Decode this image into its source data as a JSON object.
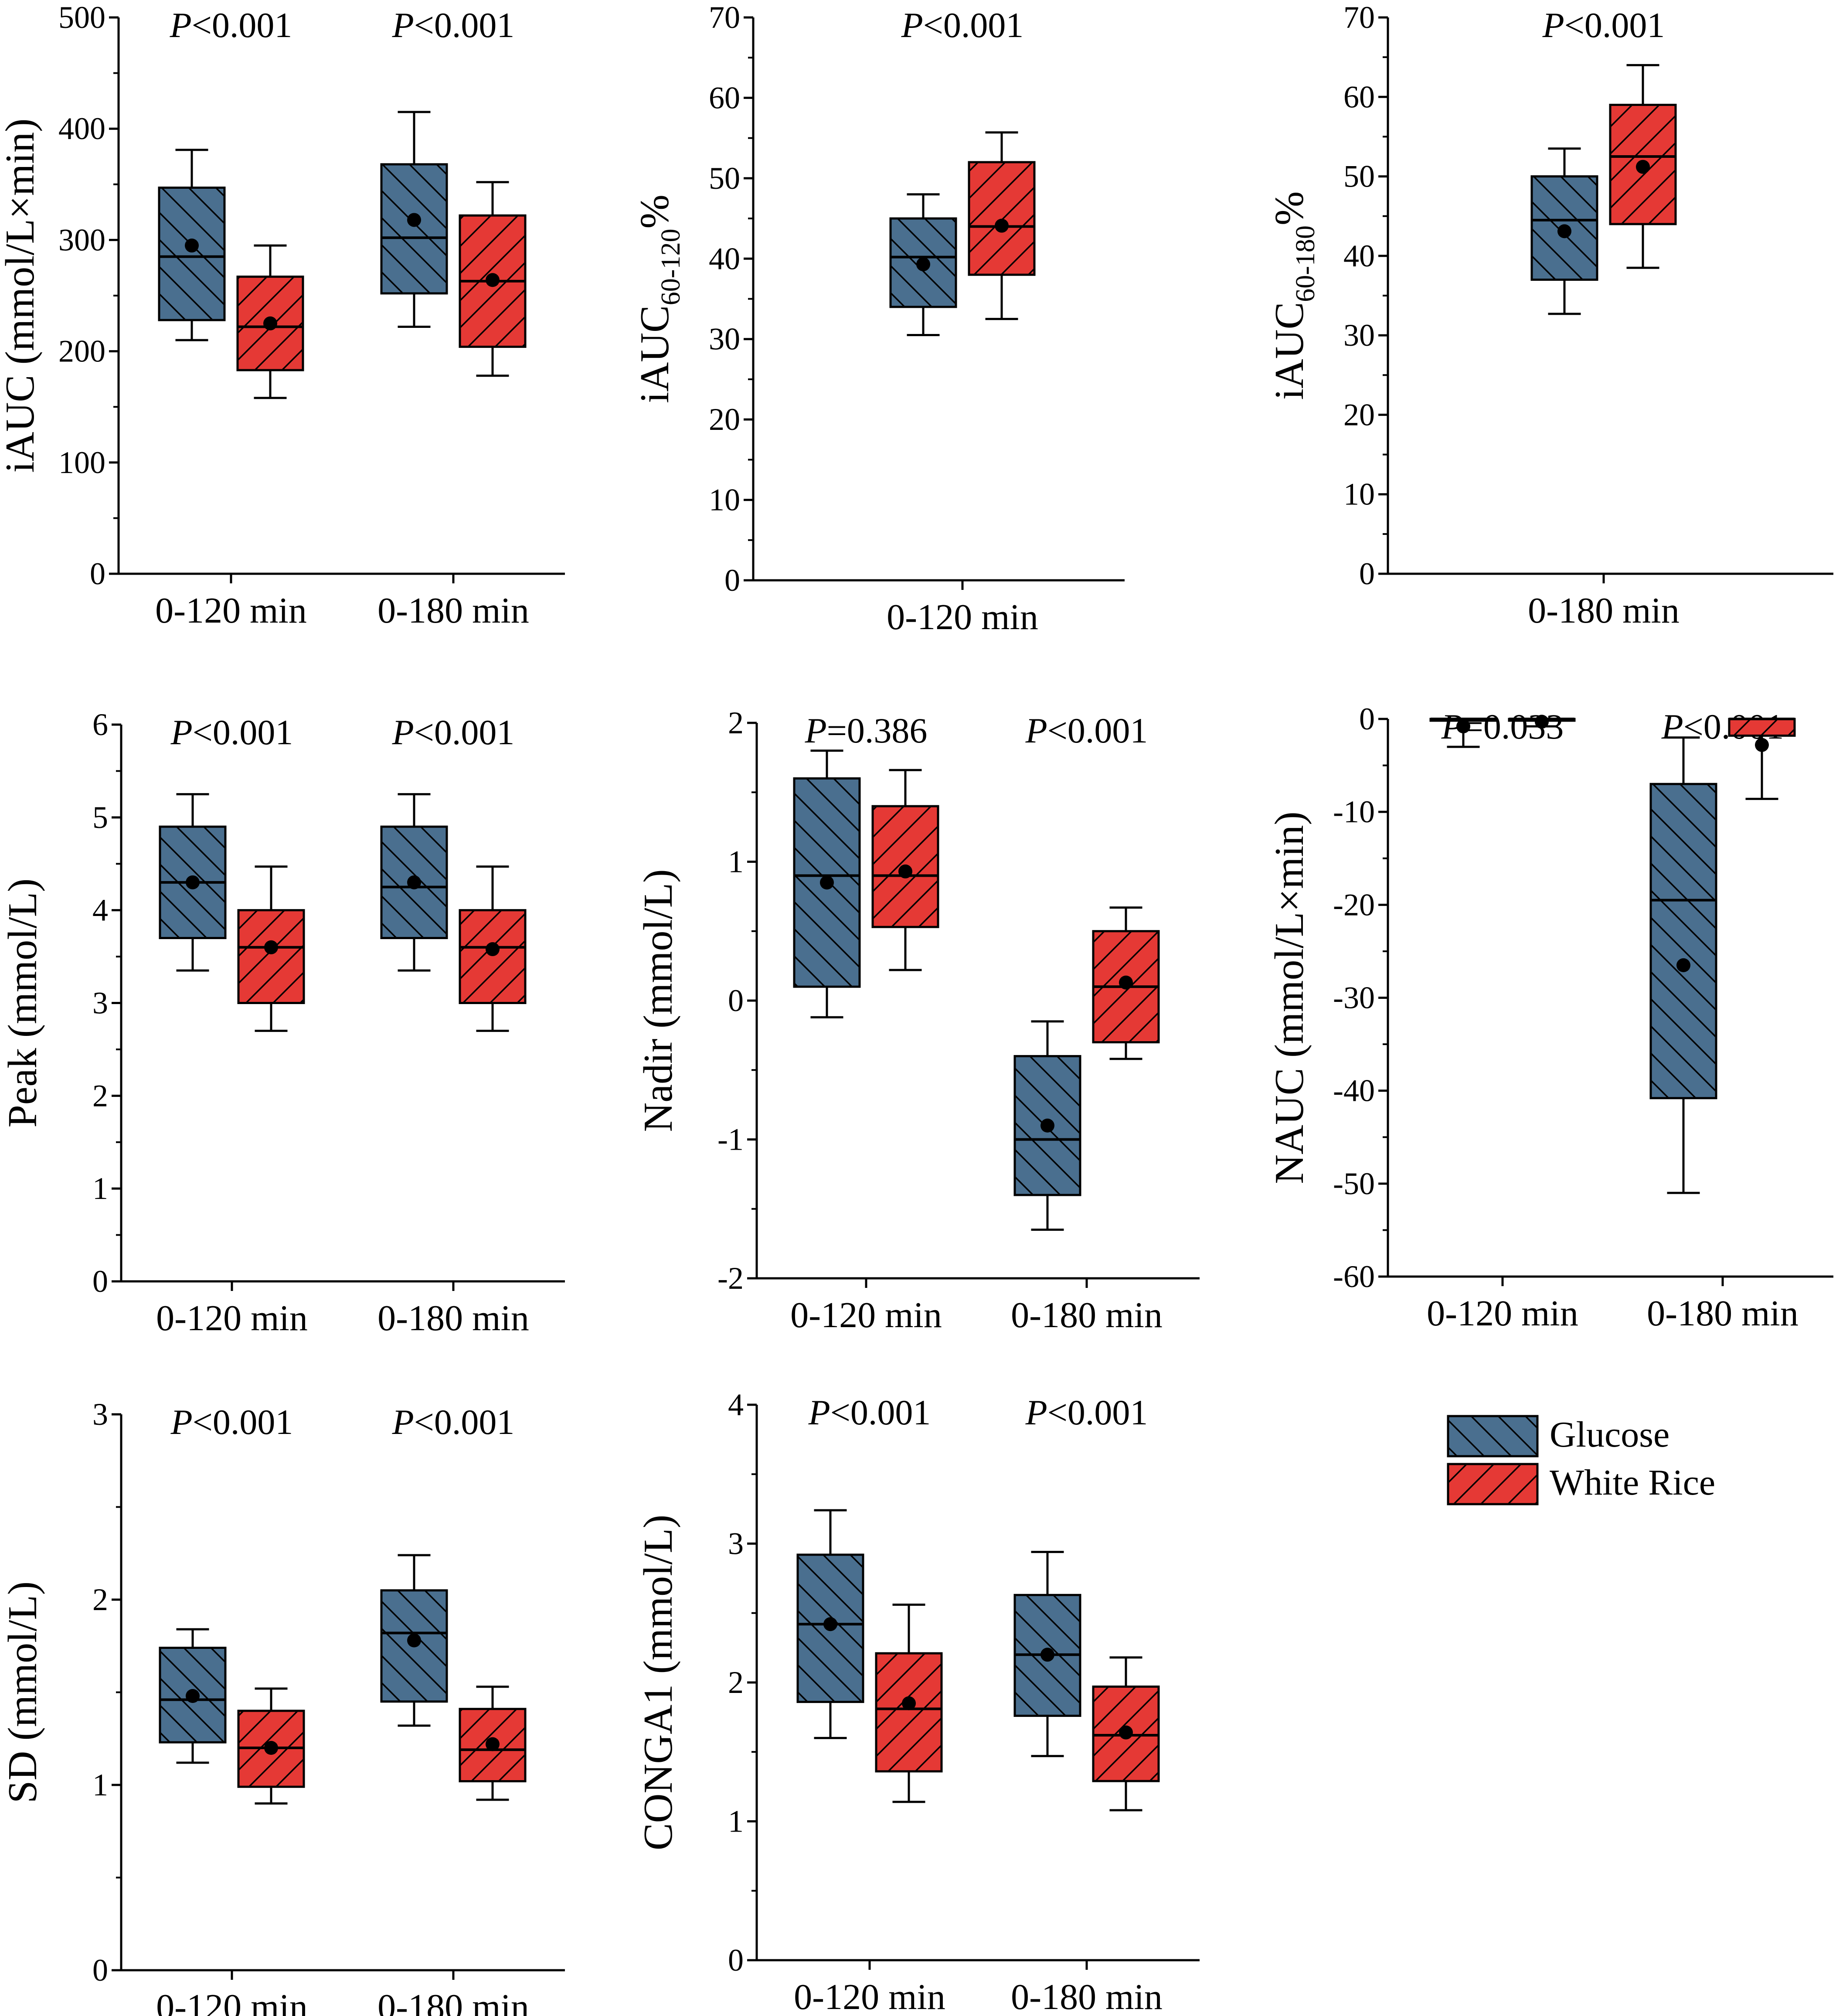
{
  "colors": {
    "glucose": "#4a6f8f",
    "white_rice": "#e53935",
    "axis": "#000000"
  },
  "legend": {
    "items": [
      {
        "label": "Glucose",
        "color": "#4a6f8f"
      },
      {
        "label": "White Rice",
        "color": "#e53935"
      }
    ]
  },
  "chart_data": [
    {
      "id": "iauc",
      "type": "box",
      "ylabel": "iAUC (mmol/L×min)",
      "ylim": [
        0,
        500
      ],
      "yticks": [
        0,
        100,
        200,
        300,
        400,
        500
      ],
      "groups": [
        {
          "label": "0-120 min",
          "p_text": "<0.001",
          "glucose": {
            "min": 210,
            "q1": 228,
            "median": 285,
            "q3": 347,
            "max": 381,
            "mean": 295
          },
          "white_rice": {
            "min": 158,
            "q1": 183,
            "median": 222,
            "q3": 267,
            "max": 295,
            "mean": 225
          }
        },
        {
          "label": "0-180 min",
          "p_text": "<0.001",
          "glucose": {
            "min": 222,
            "q1": 252,
            "median": 302,
            "q3": 368,
            "max": 415,
            "mean": 318
          },
          "white_rice": {
            "min": 178,
            "q1": 204,
            "median": 263,
            "q3": 322,
            "max": 352,
            "mean": 264
          }
        }
      ]
    },
    {
      "id": "iauc60120",
      "type": "box",
      "ylabel_main": "iAUC",
      "ylabel_sub": "60-120",
      "ylabel_suffix": "%",
      "ylim": [
        0,
        70
      ],
      "yticks": [
        0,
        10,
        20,
        30,
        40,
        50,
        60,
        70
      ],
      "p_text": "<0.001",
      "groups": [
        {
          "label": "0-120 min",
          "glucose": {
            "min": 30.5,
            "q1": 34,
            "median": 40.2,
            "q3": 45,
            "max": 48,
            "mean": 39.3
          },
          "white_rice": {
            "min": 32.5,
            "q1": 38,
            "median": 44,
            "q3": 52,
            "max": 55.7,
            "mean": 44.1
          }
        }
      ]
    },
    {
      "id": "iauc60180",
      "type": "box",
      "ylabel_main": "iAUC",
      "ylabel_sub": "60-180",
      "ylabel_suffix": "%",
      "ylim": [
        0,
        70
      ],
      "yticks": [
        0,
        10,
        20,
        30,
        40,
        50,
        60,
        70
      ],
      "p_text": "<0.001",
      "groups": [
        {
          "label": "0-180 min",
          "glucose": {
            "min": 32.7,
            "q1": 37,
            "median": 44.5,
            "q3": 50,
            "max": 53.5,
            "mean": 43.1
          },
          "white_rice": {
            "min": 38.5,
            "q1": 44,
            "median": 52.5,
            "q3": 59,
            "max": 64,
            "mean": 51.2
          }
        }
      ]
    },
    {
      "id": "peak",
      "type": "box",
      "ylabel": "Peak (mmol/L)",
      "ylim": [
        0,
        6
      ],
      "yticks": [
        0,
        1,
        2,
        3,
        4,
        5,
        6
      ],
      "groups": [
        {
          "label": "0-120 min",
          "p_text": "<0.001",
          "glucose": {
            "min": 3.35,
            "q1": 3.7,
            "median": 4.3,
            "q3": 4.9,
            "max": 5.25,
            "mean": 4.3
          },
          "white_rice": {
            "min": 2.7,
            "q1": 3.0,
            "median": 3.6,
            "q3": 4.0,
            "max": 4.47,
            "mean": 3.6
          }
        },
        {
          "label": "0-180 min",
          "p_text": "<0.001",
          "glucose": {
            "min": 3.35,
            "q1": 3.7,
            "median": 4.25,
            "q3": 4.9,
            "max": 5.25,
            "mean": 4.3
          },
          "white_rice": {
            "min": 2.7,
            "q1": 3.0,
            "median": 3.6,
            "q3": 4.0,
            "max": 4.47,
            "mean": 3.58
          }
        }
      ]
    },
    {
      "id": "nadir",
      "type": "box",
      "ylabel": "Nadir (mmol/L)",
      "ylim": [
        -2,
        2
      ],
      "yticks": [
        -2,
        -1,
        0,
        1,
        2
      ],
      "groups": [
        {
          "label": "0-120 min",
          "p_text": "=0.386",
          "glucose": {
            "min": -0.12,
            "q1": 0.1,
            "median": 0.9,
            "q3": 1.6,
            "max": 1.8,
            "mean": 0.85
          },
          "white_rice": {
            "min": 0.22,
            "q1": 0.53,
            "median": 0.9,
            "q3": 1.4,
            "max": 1.66,
            "mean": 0.93
          }
        },
        {
          "label": "0-180 min",
          "p_text": "<0.001",
          "glucose": {
            "min": -1.65,
            "q1": -1.4,
            "median": -1.0,
            "q3": -0.4,
            "max": -0.15,
            "mean": -0.9
          },
          "white_rice": {
            "min": -0.42,
            "q1": -0.3,
            "median": 0.1,
            "q3": 0.5,
            "max": 0.67,
            "mean": 0.13
          }
        }
      ]
    },
    {
      "id": "nauc",
      "type": "box",
      "ylabel": "NAUC (mmol/L×min)",
      "ylim": [
        -60,
        0
      ],
      "yticks": [
        -60,
        -50,
        -40,
        -30,
        -20,
        -10,
        0
      ],
      "groups": [
        {
          "label": "0-120 min",
          "p_text": "=0.033",
          "glucose": {
            "min": -3,
            "q1": 0,
            "median": 0,
            "q3": 0,
            "max": 0,
            "mean": -0.8
          },
          "white_rice": {
            "min": -0.8,
            "q1": 0,
            "median": 0,
            "q3": 0,
            "max": 0,
            "mean": -0.3
          }
        },
        {
          "label": "0-180 min",
          "p_text": "<0.001",
          "glucose": {
            "min": -51,
            "q1": -40.8,
            "median": -19.5,
            "q3": -7,
            "max": -2,
            "mean": -26.5
          },
          "white_rice": {
            "min": -8.6,
            "q1": -1.8,
            "median": 0,
            "q3": 0,
            "max": 0,
            "mean": -2.8
          }
        }
      ]
    },
    {
      "id": "sd",
      "type": "box",
      "ylabel": "SD (mmol/L)",
      "ylim": [
        0,
        3
      ],
      "yticks": [
        0,
        1,
        2,
        3
      ],
      "groups": [
        {
          "label": "0-120 min",
          "p_text": "<0.001",
          "glucose": {
            "min": 1.12,
            "q1": 1.23,
            "median": 1.46,
            "q3": 1.74,
            "max": 1.84,
            "mean": 1.48
          },
          "white_rice": {
            "min": 0.9,
            "q1": 0.99,
            "median": 1.2,
            "q3": 1.4,
            "max": 1.52,
            "mean": 1.2
          }
        },
        {
          "label": "0-180 min",
          "p_text": "<0.001",
          "glucose": {
            "min": 1.32,
            "q1": 1.45,
            "median": 1.82,
            "q3": 2.05,
            "max": 2.24,
            "mean": 1.78
          },
          "white_rice": {
            "min": 0.92,
            "q1": 1.02,
            "median": 1.19,
            "q3": 1.41,
            "max": 1.53,
            "mean": 1.22
          }
        }
      ]
    },
    {
      "id": "conga1",
      "type": "box",
      "ylabel": "CONGA1 (mmol/L)",
      "ylim": [
        0,
        4
      ],
      "yticks": [
        0,
        1,
        2,
        3,
        4
      ],
      "groups": [
        {
          "label": "0-120 min",
          "p_text": "<0.001",
          "glucose": {
            "min": 1.6,
            "q1": 1.86,
            "median": 2.42,
            "q3": 2.92,
            "max": 3.24,
            "mean": 2.42
          },
          "white_rice": {
            "min": 1.14,
            "q1": 1.36,
            "median": 1.81,
            "q3": 2.21,
            "max": 2.56,
            "mean": 1.85
          }
        },
        {
          "label": "0-180 min",
          "p_text": "<0.001",
          "glucose": {
            "min": 1.47,
            "q1": 1.76,
            "median": 2.2,
            "q3": 2.63,
            "max": 2.94,
            "mean": 2.2
          },
          "white_rice": {
            "min": 1.08,
            "q1": 1.29,
            "median": 1.62,
            "q3": 1.97,
            "max": 2.18,
            "mean": 1.64
          }
        }
      ]
    }
  ]
}
